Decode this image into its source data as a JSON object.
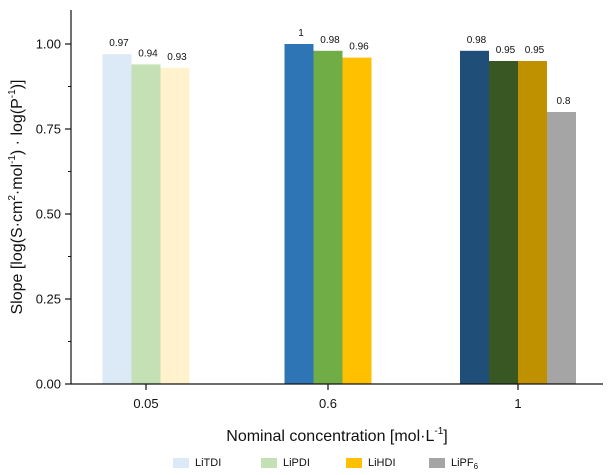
{
  "chart_data": {
    "type": "bar",
    "categories": [
      "0.05",
      "0.6",
      "1"
    ],
    "series": [
      {
        "name": "LiTDI",
        "name_sub": "",
        "values": [
          0.97,
          1,
          0.98
        ],
        "colors": [
          "#dce9f6",
          "#2e75b6",
          "#1f4e79"
        ]
      },
      {
        "name": "LiPDI",
        "name_sub": "",
        "values": [
          0.94,
          0.98,
          0.95
        ],
        "colors": [
          "#c5e0b4",
          "#70ad47",
          "#385723"
        ]
      },
      {
        "name": "LiHDI",
        "name_sub": "",
        "values": [
          0.93,
          0.96,
          0.95
        ],
        "colors": [
          "#fff2cc",
          "#ffc000",
          "#bf9000"
        ]
      },
      {
        "name": "LiPF",
        "name_sub": "6",
        "values": [
          null,
          null,
          0.8
        ],
        "colors": [
          "#a5a5a5",
          "#a5a5a5",
          "#a5a5a5"
        ]
      }
    ],
    "data_labels": [
      [
        "0.97",
        "1",
        "0.98"
      ],
      [
        "0.94",
        "0.98",
        "0.95"
      ],
      [
        "0.93",
        "0.96",
        "0.95"
      ],
      [
        "",
        "",
        "0.8"
      ]
    ],
    "legend_colors": [
      "#dce9f6",
      "#c5e0b4",
      "#ffc000",
      "#a5a5a5"
    ],
    "xlabel": {
      "main": "Nominal concentration [mol·L",
      "sup": "-1",
      "tail": "]"
    },
    "ylabel": {
      "p1": "Slope [log(S·cm",
      "s1": "2",
      "p2": "·mol",
      "s2": "-1",
      "p3": ") · log(P",
      "s3": "-1",
      "p4": ")]"
    },
    "ylim": [
      0,
      1.1
    ],
    "yticks": [
      "0.00",
      "0.25",
      "0.50",
      "0.75",
      "1.00"
    ],
    "ytick_values": [
      0,
      0.25,
      0.5,
      0.75,
      1.0
    ],
    "grid": false,
    "legend_position": "bottom"
  }
}
